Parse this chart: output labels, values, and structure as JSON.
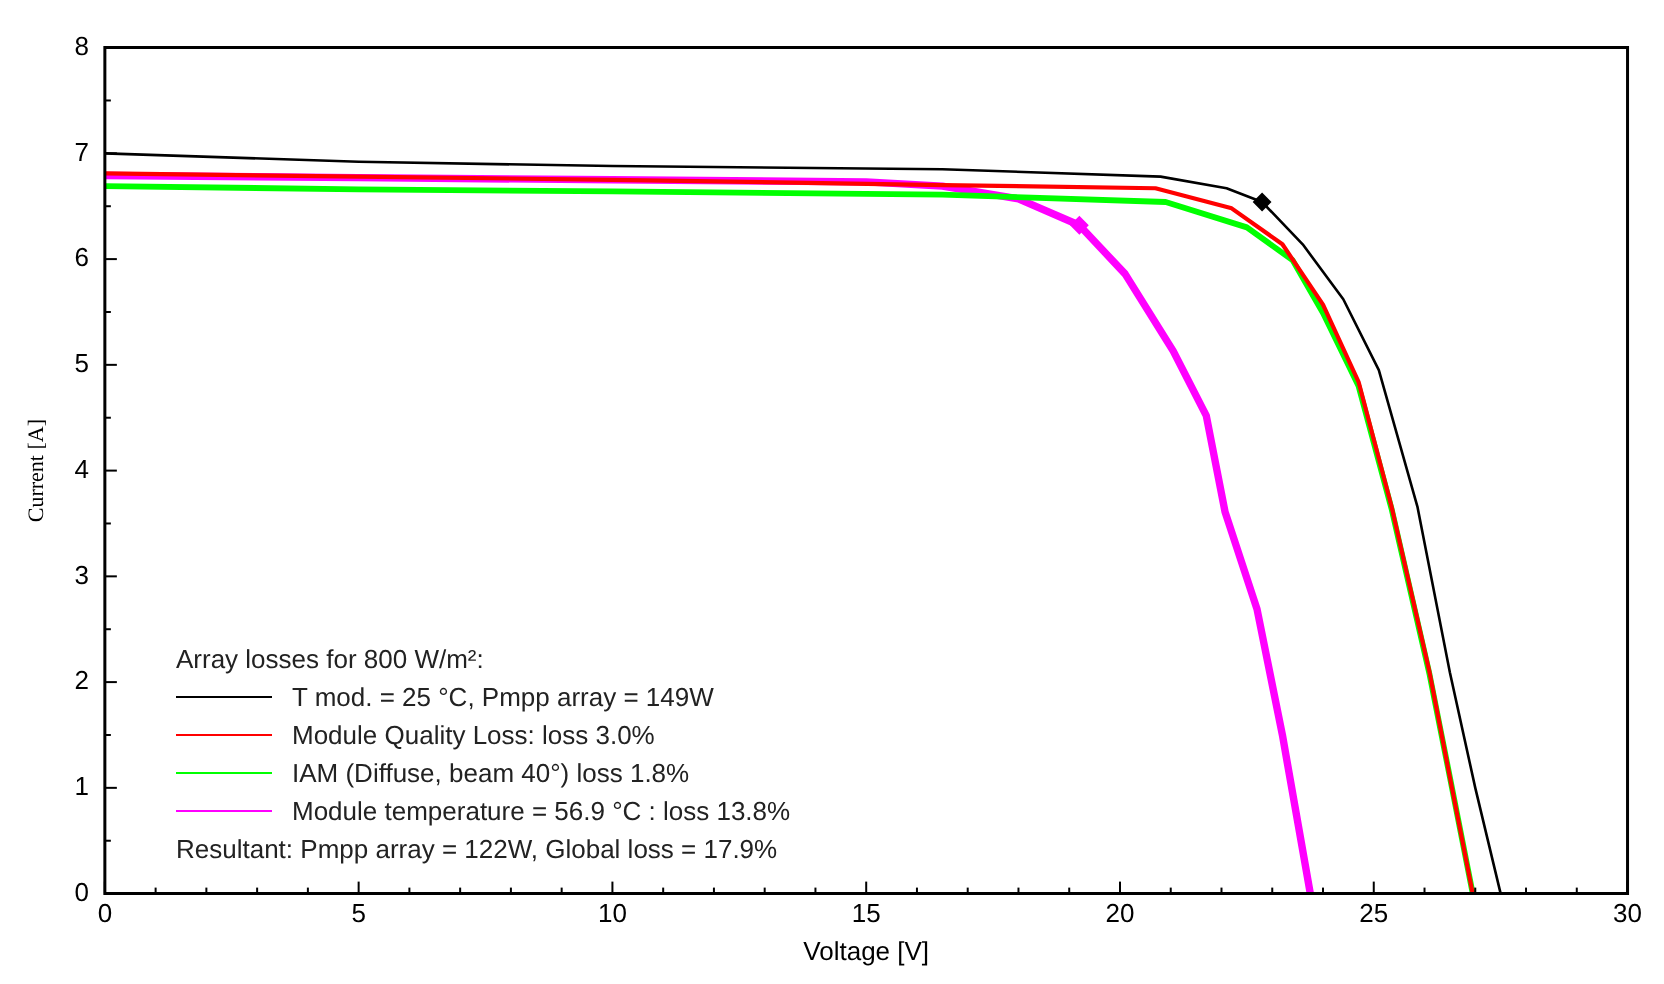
{
  "chart_data": {
    "type": "line",
    "xlabel": "Voltage [V]",
    "ylabel": "Current [A]",
    "xlim": [
      0,
      30
    ],
    "ylim": [
      0,
      8
    ],
    "xticks": [
      0,
      5,
      10,
      15,
      20,
      25,
      30
    ],
    "yticks": [
      0,
      1,
      2,
      3,
      4,
      5,
      6,
      7,
      8
    ],
    "grid": false,
    "legend": "bottom left",
    "legend_title": "Array losses for 800 W/m²:",
    "marker": "none",
    "line_style": "solid",
    "annotations": [
      "Resultant: Pmpp array = 122W, Global loss = 17.9%"
    ],
    "series": [
      {
        "name": "T mod. = 25 °C, Pmpp array = 149W",
        "color": "#000000",
        "x": [
          0,
          5,
          10,
          16.5,
          20.8,
          22.1,
          22.8,
          23.6,
          24.4,
          25.1,
          25.86,
          26.5,
          27.0,
          27.5
        ],
        "values": [
          7.0,
          6.92,
          6.88,
          6.85,
          6.78,
          6.67,
          6.54,
          6.14,
          5.62,
          4.95,
          3.66,
          2.09,
          1.0,
          0
        ]
      },
      {
        "name": "Module Quality Loss: loss 3.0%",
        "color": "#ff0000",
        "x": [
          0,
          5,
          10,
          16.5,
          20.7,
          22.2,
          23.2,
          24.0,
          24.7,
          25.35,
          26.1,
          26.5,
          26.95
        ],
        "values": [
          6.81,
          6.78,
          6.75,
          6.7,
          6.67,
          6.48,
          6.14,
          5.57,
          4.84,
          3.66,
          2.09,
          1.1,
          0
        ]
      },
      {
        "name": "IAM (Diffuse, beam 40°) loss 1.8%",
        "color": "#00ff00",
        "x": [
          0,
          5,
          10,
          16.5,
          20.9,
          22.5,
          23.4,
          24.0,
          24.7,
          25.35,
          26.1,
          26.5,
          26.95
        ],
        "values": [
          6.69,
          6.66,
          6.64,
          6.61,
          6.54,
          6.3,
          5.99,
          5.49,
          4.8,
          3.64,
          2.07,
          1.1,
          0
        ]
      },
      {
        "name": "Module temperature = 56.9 °C : loss 13.8%",
        "color": "#ff00ff",
        "x": [
          0,
          5,
          10,
          15,
          16.5,
          18.0,
          19.2,
          20.1,
          21.05,
          21.7,
          22.07,
          22.7,
          23.2,
          23.75
        ],
        "values": [
          6.79,
          6.77,
          6.75,
          6.73,
          6.69,
          6.57,
          6.32,
          5.86,
          5.13,
          4.52,
          3.61,
          2.69,
          1.5,
          0
        ]
      },
      {
        "type": "scatter",
        "marker": "diamond",
        "color": "#000000",
        "x": [
          22.8
        ],
        "values": [
          6.54
        ]
      },
      {
        "type": "scatter",
        "marker": "diamond",
        "color": "#ff00ff",
        "x": [
          19.2
        ],
        "values": [
          6.32
        ]
      }
    ]
  }
}
